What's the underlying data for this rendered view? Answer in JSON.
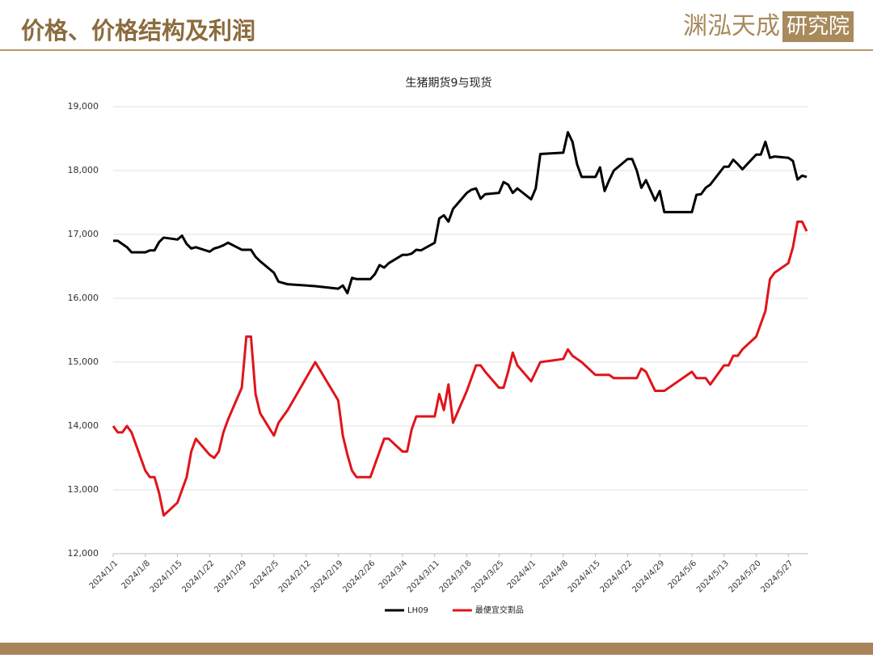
{
  "header": {
    "title": "价格、价格结构及利润",
    "logo_main": "渊泓天成",
    "logo_box": "研究院"
  },
  "chart_data": {
    "type": "line",
    "title": "生猪期货9与现货",
    "x": [
      "2024/1/1",
      "2024/1/2",
      "2024/1/3",
      "2024/1/4",
      "2024/1/5",
      "2024/1/8",
      "2024/1/9",
      "2024/1/10",
      "2024/1/11",
      "2024/1/12",
      "2024/1/15",
      "2024/1/16",
      "2024/1/17",
      "2024/1/18",
      "2024/1/19",
      "2024/1/22",
      "2024/1/23",
      "2024/1/24",
      "2024/1/25",
      "2024/1/26",
      "2024/1/29",
      "2024/1/30",
      "2024/1/31",
      "2024/2/1",
      "2024/2/2",
      "2024/2/5",
      "2024/2/6",
      "2024/2/7",
      "2024/2/8",
      "2024/2/14",
      "2024/2/19",
      "2024/2/20",
      "2024/2/21",
      "2024/2/22",
      "2024/2/23",
      "2024/2/26",
      "2024/2/27",
      "2024/2/28",
      "2024/2/29",
      "2024/3/1",
      "2024/3/4",
      "2024/3/5",
      "2024/3/6",
      "2024/3/7",
      "2024/3/8",
      "2024/3/11",
      "2024/3/12",
      "2024/3/13",
      "2024/3/14",
      "2024/3/15",
      "2024/3/18",
      "2024/3/19",
      "2024/3/20",
      "2024/3/21",
      "2024/3/22",
      "2024/3/25",
      "2024/3/26",
      "2024/3/27",
      "2024/3/28",
      "2024/3/29",
      "2024/4/1",
      "2024/4/2",
      "2024/4/3",
      "2024/4/8",
      "2024/4/9",
      "2024/4/10",
      "2024/4/11",
      "2024/4/12",
      "2024/4/15",
      "2024/4/16",
      "2024/4/17",
      "2024/4/18",
      "2024/4/19",
      "2024/4/22",
      "2024/4/23",
      "2024/4/24",
      "2024/4/25",
      "2024/4/26",
      "2024/4/28",
      "2024/4/29",
      "2024/4/30",
      "2024/5/6",
      "2024/5/7",
      "2024/5/8",
      "2024/5/9",
      "2024/5/10",
      "2024/5/13",
      "2024/5/14",
      "2024/5/15",
      "2024/5/16",
      "2024/5/17",
      "2024/5/20",
      "2024/5/21",
      "2024/5/22",
      "2024/5/23",
      "2024/5/24",
      "2024/5/27",
      "2024/5/28",
      "2024/5/29",
      "2024/5/30",
      "2024/5/31"
    ],
    "series": [
      {
        "name": "LH09",
        "color": "#000000",
        "values": [
          16900,
          16900,
          16850,
          16800,
          16720,
          16720,
          16750,
          16750,
          16880,
          16950,
          16920,
          16980,
          16850,
          16780,
          16800,
          16730,
          16780,
          16800,
          16830,
          16870,
          16760,
          16760,
          16760,
          16650,
          16580,
          16400,
          16260,
          16240,
          16220,
          16190,
          16150,
          16200,
          16080,
          16320,
          16300,
          16300,
          16380,
          16520,
          16480,
          16550,
          16680,
          16680,
          16700,
          16760,
          16750,
          16870,
          17250,
          17300,
          17200,
          17400,
          17650,
          17700,
          17720,
          17560,
          17630,
          17650,
          17820,
          17780,
          17650,
          17720,
          17550,
          17720,
          18260,
          18280,
          18600,
          18450,
          18100,
          17900,
          17900,
          18050,
          17680,
          17850,
          18000,
          18180,
          18180,
          18000,
          17730,
          17850,
          17530,
          17680,
          17350,
          17350,
          17620,
          17630,
          17730,
          17780,
          18060,
          18060,
          18170,
          18100,
          18020,
          18250,
          18250,
          18450,
          18200,
          18220,
          18200,
          18150,
          17860,
          17920,
          17900
        ]
      },
      {
        "name": "最便宜交割品",
        "color": "#e0141b",
        "values": [
          14000,
          13900,
          13900,
          14000,
          13900,
          13300,
          13200,
          13200,
          12950,
          12600,
          12800,
          13000,
          13200,
          13600,
          13800,
          13550,
          13500,
          13600,
          13900,
          14100,
          14600,
          15400,
          15400,
          14500,
          14200,
          13850,
          14050,
          14150,
          14250,
          15000,
          14400,
          13850,
          13550,
          13300,
          13200,
          13200,
          13400,
          13600,
          13800,
          13800,
          13600,
          13600,
          13950,
          14150,
          14150,
          14150,
          14500,
          14250,
          14650,
          14050,
          14550,
          14750,
          14950,
          14950,
          14850,
          14600,
          14600,
          14850,
          15150,
          14950,
          14700,
          14850,
          15000,
          15050,
          15200,
          15100,
          15050,
          15000,
          14800,
          14800,
          14800,
          14800,
          14750,
          14750,
          14750,
          14750,
          14900,
          14850,
          14550,
          14550,
          14550,
          14850,
          14750,
          14750,
          14750,
          14650,
          14950,
          14950,
          15100,
          15100,
          15200,
          15400,
          15600,
          15800,
          16300,
          16400,
          16550,
          16800,
          17200,
          17200,
          17050
        ]
      }
    ],
    "xlim": [
      "2024/1/1",
      "2024/5/31"
    ],
    "xticks": [
      "2024/1/1",
      "2024/1/8",
      "2024/1/15",
      "2024/1/22",
      "2024/1/29",
      "2024/2/5",
      "2024/2/12",
      "2024/2/19",
      "2024/2/26",
      "2024/3/4",
      "2024/3/11",
      "2024/3/18",
      "2024/3/25",
      "2024/4/1",
      "2024/4/8",
      "2024/4/15",
      "2024/4/22",
      "2024/4/29",
      "2024/5/6",
      "2024/5/13",
      "2024/5/20",
      "2024/5/27"
    ],
    "ylim": [
      12000,
      19000
    ],
    "yticks": [
      {
        "value": 12000,
        "label": "12,000"
      },
      {
        "value": 13000,
        "label": "13,000"
      },
      {
        "value": 14000,
        "label": "14,000"
      },
      {
        "value": 15000,
        "label": "15,000"
      },
      {
        "value": 16000,
        "label": "16,000"
      },
      {
        "value": 17000,
        "label": "17,000"
      },
      {
        "value": 18000,
        "label": "18,000"
      },
      {
        "value": 19000,
        "label": "19,000"
      }
    ],
    "grid": true,
    "legend": "bottom"
  }
}
